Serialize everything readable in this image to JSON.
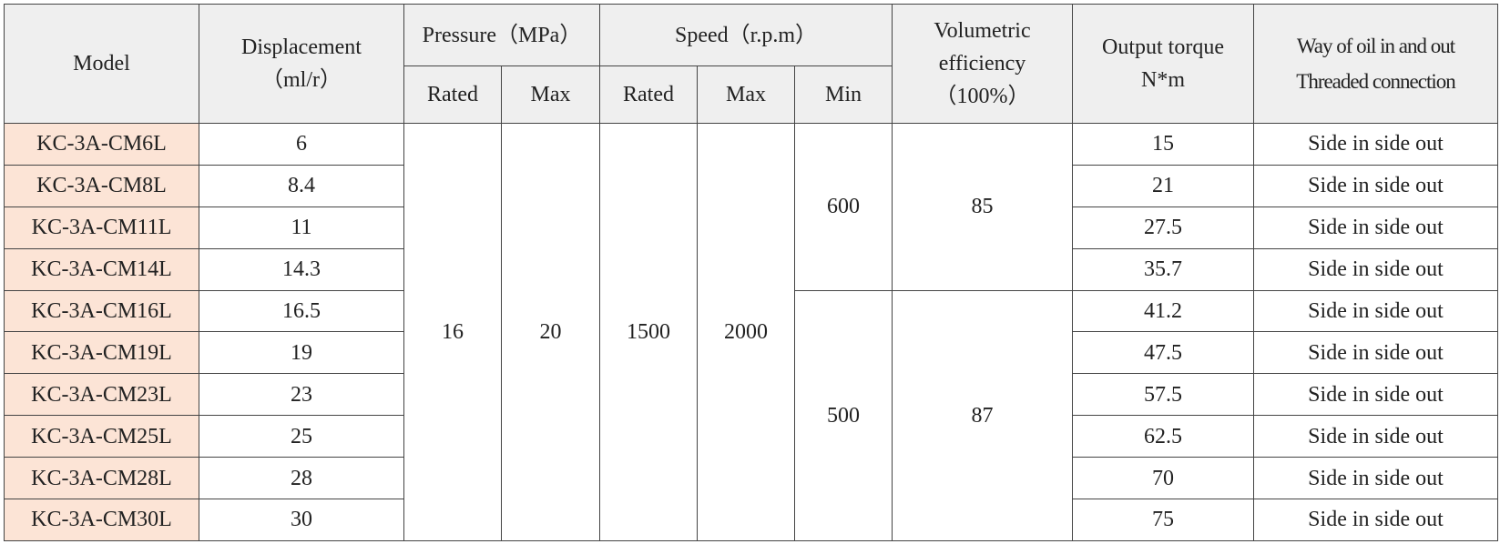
{
  "header": {
    "model": "Model",
    "displacement": {
      "label": "Displacement",
      "unit": "（ml/r）"
    },
    "pressure": {
      "label": "Pressure（MPa）",
      "rated": "Rated",
      "max": "Max"
    },
    "speed": {
      "label": "Speed（r.p.m）",
      "rated": "Rated",
      "max": "Max",
      "min": "Min"
    },
    "volumetric_efficiency": {
      "label": [
        "Volumetric",
        "efficiency"
      ],
      "unit": "（100%）"
    },
    "output_torque": {
      "label": "Output torque",
      "unit": "N*m"
    },
    "way": {
      "label": "Way of oil in and out",
      "sub": "Threaded connection"
    }
  },
  "pressure_rated": 16,
  "pressure_max": 20,
  "speed_rated": 1500,
  "speed_max": 2000,
  "groups": [
    {
      "speed_min": 600,
      "volumetric_efficiency": 85,
      "rows": [
        {
          "model": "KC-3A-CM6L",
          "displacement": 6,
          "output_torque": 15,
          "way": "Side in side out"
        },
        {
          "model": "KC-3A-CM8L",
          "displacement": 8.4,
          "output_torque": 21,
          "way": "Side in side out"
        },
        {
          "model": "KC-3A-CM11L",
          "displacement": 11,
          "output_torque": 27.5,
          "way": "Side in side out"
        },
        {
          "model": "KC-3A-CM14L",
          "displacement": 14.3,
          "output_torque": 35.7,
          "way": "Side in side out"
        }
      ]
    },
    {
      "speed_min": 500,
      "volumetric_efficiency": 87,
      "rows": [
        {
          "model": "KC-3A-CM16L",
          "displacement": 16.5,
          "output_torque": 41.2,
          "way": "Side in side out"
        },
        {
          "model": "KC-3A-CM19L",
          "displacement": 19,
          "output_torque": 47.5,
          "way": "Side in side out"
        },
        {
          "model": "KC-3A-CM23L",
          "displacement": 23,
          "output_torque": 57.5,
          "way": "Side in side out"
        },
        {
          "model": "KC-3A-CM25L",
          "displacement": 25,
          "output_torque": 62.5,
          "way": "Side in side out"
        },
        {
          "model": "KC-3A-CM28L",
          "displacement": 28,
          "output_torque": 70,
          "way": "Side in side out"
        },
        {
          "model": "KC-3A-CM30L",
          "displacement": 30,
          "output_torque": 75,
          "way": "Side in side out"
        }
      ]
    }
  ]
}
